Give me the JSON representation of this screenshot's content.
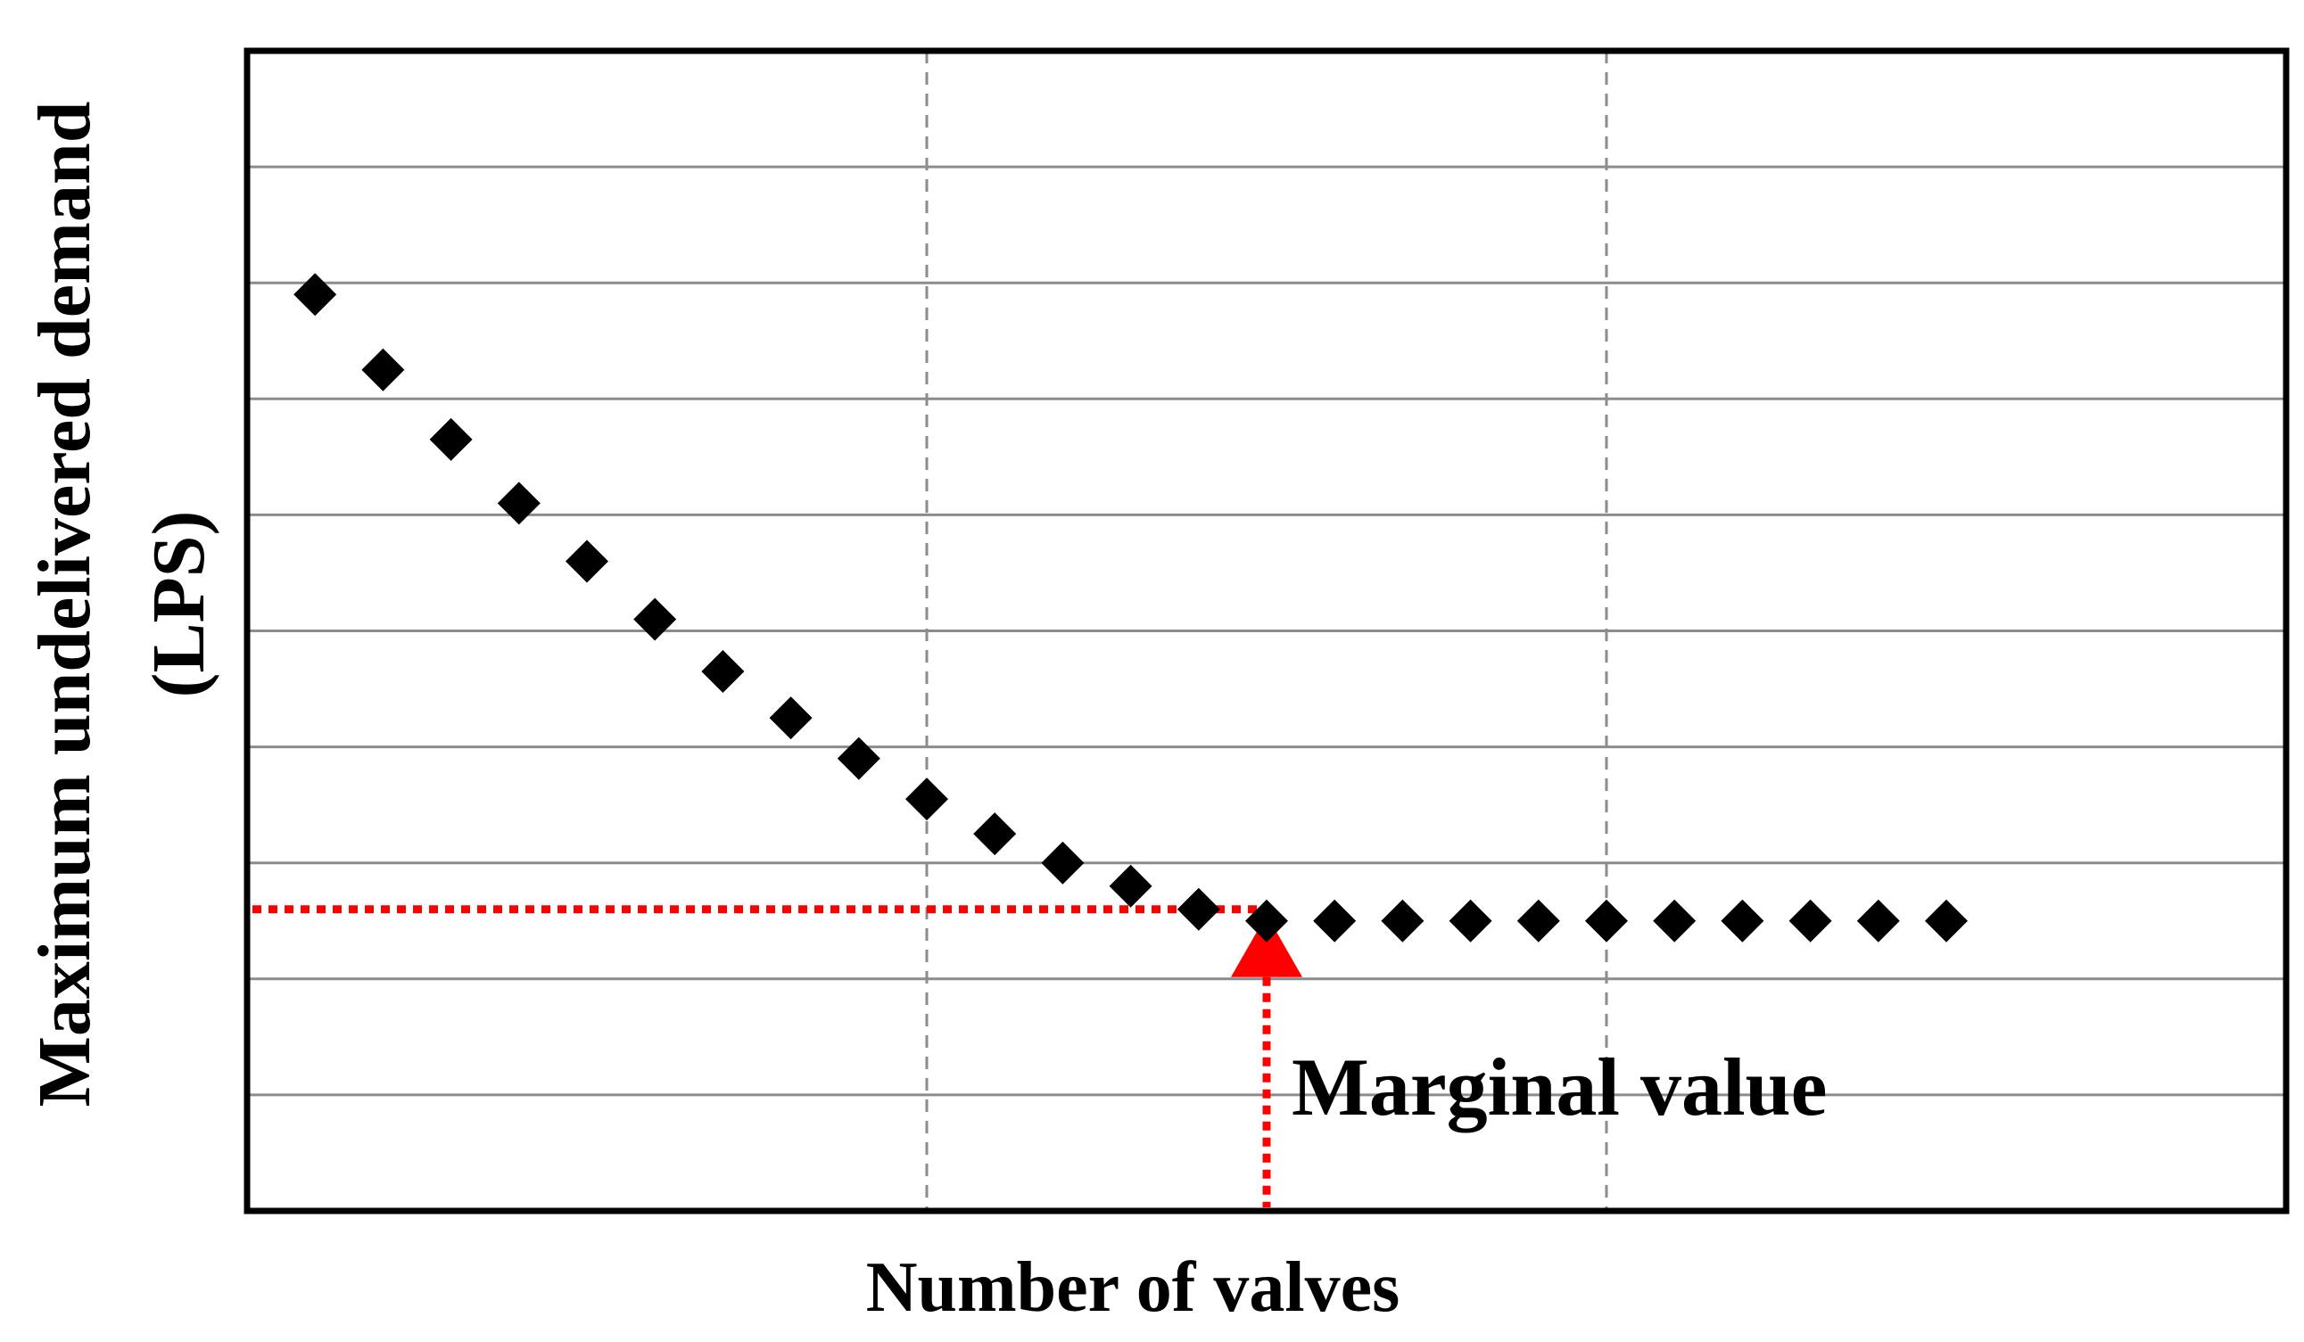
{
  "chart_data": {
    "type": "scatter",
    "title": "",
    "xlabel": "Number of valves",
    "ylabel_line1": "Maximum undelivered demand",
    "ylabel_line2": "(LPS)",
    "xlim": [
      0,
      30
    ],
    "ylim": [
      0,
      10
    ],
    "x_grid_values": [
      10,
      20
    ],
    "y_grid_values": [
      1,
      2,
      3,
      4,
      5,
      6,
      7,
      8,
      9
    ],
    "grid": true,
    "legend": "none",
    "series": [
      {
        "marker": "diamond",
        "color": "#000000",
        "points": [
          [
            1,
            7.9
          ],
          [
            2,
            7.25
          ],
          [
            3,
            6.65
          ],
          [
            4,
            6.1
          ],
          [
            5,
            5.6
          ],
          [
            6,
            5.1
          ],
          [
            7,
            4.65
          ],
          [
            8,
            4.25
          ],
          [
            9,
            3.9
          ],
          [
            10,
            3.55
          ],
          [
            11,
            3.25
          ],
          [
            12,
            3.0
          ],
          [
            13,
            2.8
          ],
          [
            14,
            2.6
          ],
          [
            15,
            2.5
          ],
          [
            16,
            2.5
          ],
          [
            17,
            2.5
          ],
          [
            18,
            2.5
          ],
          [
            19,
            2.5
          ],
          [
            20,
            2.5
          ],
          [
            21,
            2.5
          ],
          [
            22,
            2.5
          ],
          [
            23,
            2.5
          ],
          [
            24,
            2.5
          ],
          [
            25,
            2.5
          ]
        ]
      }
    ],
    "annotation": {
      "label": "Marginal value",
      "x": 15,
      "y": 2.6,
      "color": "#ff0000"
    }
  }
}
